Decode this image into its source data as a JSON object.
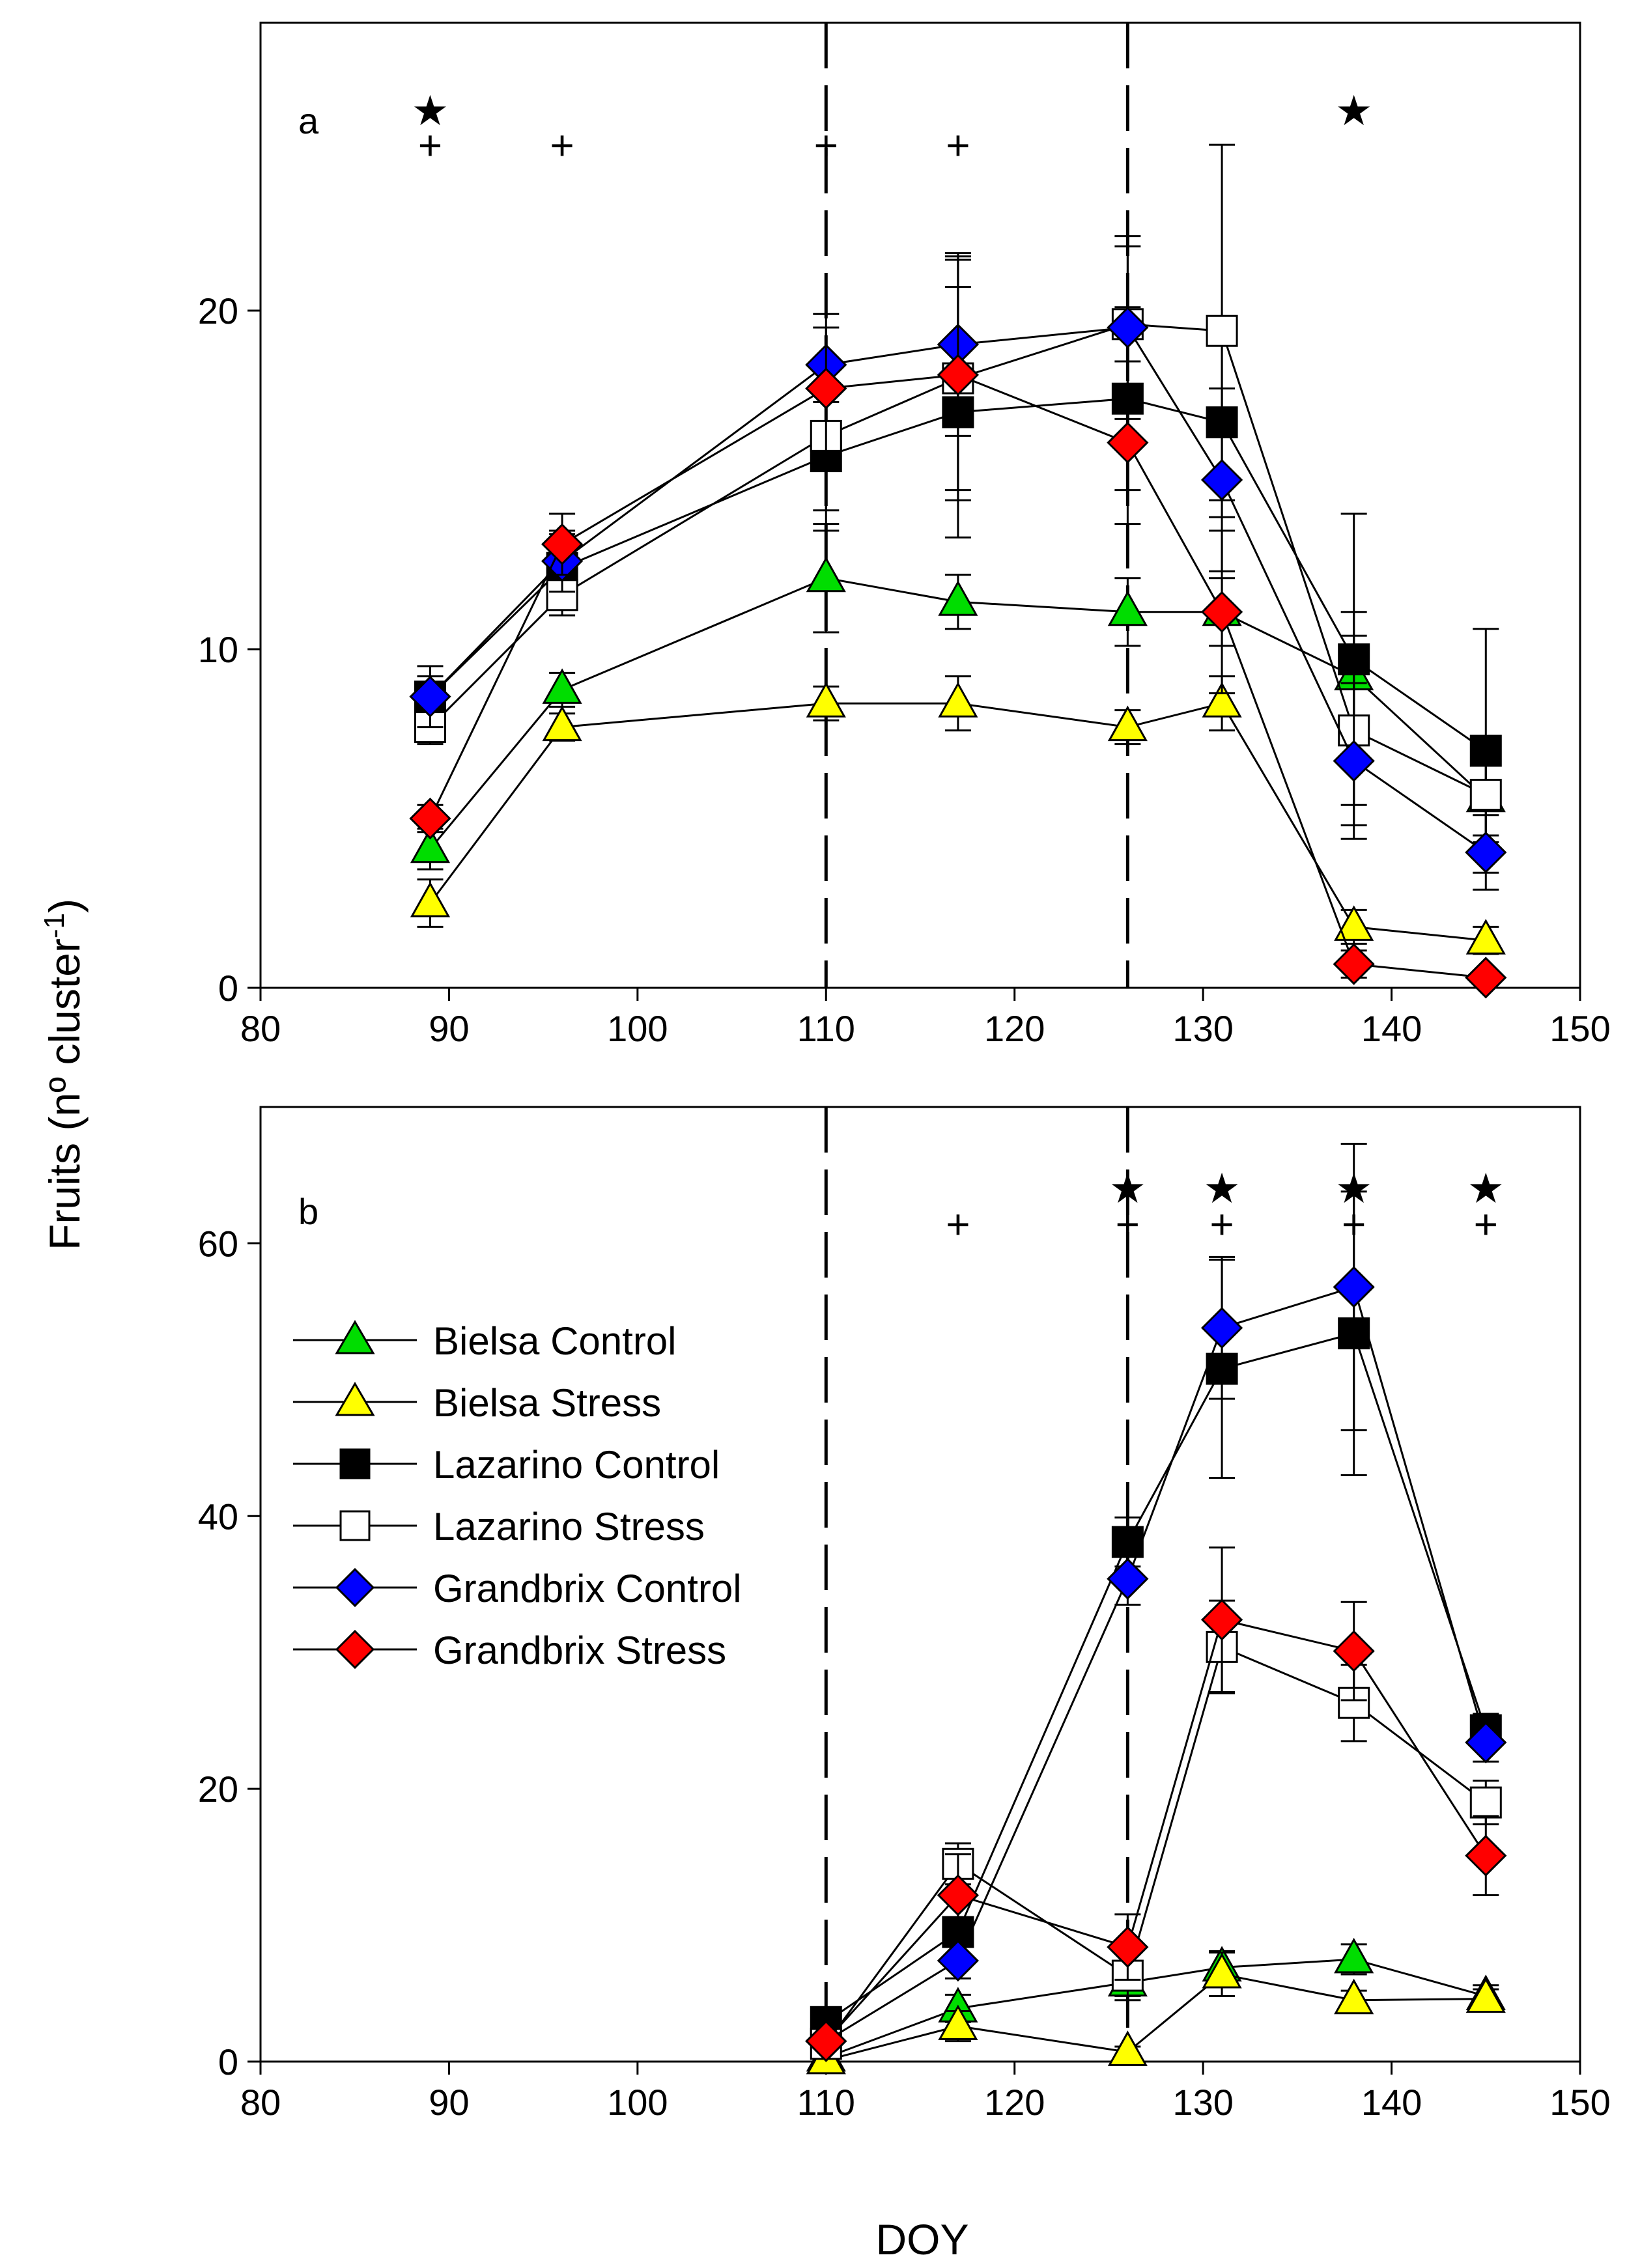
{
  "figure": {
    "ylabel": "Fruits (nº cluster",
    "ylabel_sup": "-1",
    "ylabel_close": ")",
    "xlabel": "DOY"
  },
  "legend": [
    {
      "label": "Bielsa Control"
    },
    {
      "label": "Bielsa Stress"
    },
    {
      "label": "Lazarino Control"
    },
    {
      "label": "Lazarino Stress"
    },
    {
      "label": "Grandbrix Control"
    },
    {
      "label": "Grandbrix Stress"
    }
  ],
  "colors": {
    "bielsa_control": "#00dd00",
    "bielsa_stress": "#ffff00",
    "lazarino_control": "#000000",
    "lazarino_stress": "#ffffff",
    "grandbrix_control": "#0000ff",
    "grandbrix_stress": "#ff0000"
  },
  "chart_data": [
    {
      "type": "line",
      "panel_label": "a",
      "xlim": [
        80,
        150
      ],
      "ylim": [
        0,
        28.5
      ],
      "xticks": [
        80,
        90,
        100,
        110,
        120,
        130,
        140,
        150
      ],
      "yticks": [
        0,
        10,
        20
      ],
      "vlines_dashed": [
        110,
        126
      ],
      "significance": [
        {
          "x": 89,
          "star": true,
          "plus": true
        },
        {
          "x": 96,
          "star": false,
          "plus": true
        },
        {
          "x": 110,
          "star": false,
          "plus": true
        },
        {
          "x": 117,
          "star": false,
          "plus": true
        },
        {
          "x": 138,
          "star": true,
          "plus": false
        }
      ],
      "series": [
        {
          "name": "Bielsa Control",
          "marker": "triangle",
          "color": "#00dd00",
          "x": [
            89,
            96,
            110,
            117,
            126,
            131,
            138,
            145
          ],
          "y": [
            4.1,
            8.8,
            12.1,
            11.4,
            11.1,
            11.1,
            9.2,
            5.6
          ],
          "err": [
            0.6,
            0.5,
            1.6,
            0.8,
            1.0,
            1.0,
            1.9,
            1.3
          ]
        },
        {
          "name": "Bielsa Stress",
          "marker": "triangle",
          "color": "#ffff00",
          "x": [
            89,
            96,
            110,
            117,
            126,
            131,
            138,
            145
          ],
          "y": [
            2.5,
            7.7,
            8.4,
            8.4,
            7.7,
            8.4,
            1.8,
            1.4
          ],
          "err": [
            0.7,
            0.4,
            0.5,
            0.8,
            0.5,
            0.8,
            0.5,
            0.4
          ]
        },
        {
          "name": "Lazarino Control",
          "marker": "square",
          "color": "#000000",
          "x": [
            89,
            96,
            110,
            117,
            126,
            131,
            138,
            145
          ],
          "y": [
            8.6,
            12.4,
            15.7,
            17.0,
            17.4,
            16.7,
            9.7,
            7.0
          ],
          "err": [
            0.6,
            1.0,
            2.2,
            3.7,
            2.7,
            2.3,
            4.3,
            3.6
          ]
        },
        {
          "name": "Lazarino Stress",
          "marker": "square",
          "color": "#ffffff",
          "x": [
            89,
            96,
            110,
            117,
            126,
            131,
            138,
            145
          ],
          "y": [
            7.7,
            11.6,
            16.3,
            18.0,
            19.6,
            19.4,
            7.6,
            5.7
          ],
          "err": [
            0.5,
            0.6,
            2.2,
            3.6,
            2.3,
            5.5,
            2.8,
            1.2
          ]
        },
        {
          "name": "Grandbrix Control",
          "marker": "diamond",
          "color": "#0000ff",
          "x": [
            89,
            96,
            110,
            117,
            126,
            131,
            138,
            145
          ],
          "y": [
            8.6,
            12.6,
            18.4,
            19.0,
            19.5,
            15.0,
            6.7,
            4.0
          ],
          "err": [
            0.9,
            0.9,
            1.1,
            2.7,
            2.7,
            2.7,
            2.3,
            1.1
          ]
        },
        {
          "name": "Grandbrix Stress",
          "marker": "diamond",
          "color": "#ff0000",
          "x": [
            89,
            96,
            110,
            117,
            126,
            131,
            138,
            145
          ],
          "y": [
            5.0,
            13.1,
            17.7,
            18.1,
            16.1,
            11.1,
            0.7,
            0.3
          ],
          "err": [
            0.4,
            0.9,
            2.2,
            3.4,
            2.4,
            2.4,
            0.4,
            0.2
          ]
        }
      ]
    },
    {
      "type": "line",
      "panel_label": "b",
      "xlim": [
        80,
        150
      ],
      "ylim": [
        0,
        70
      ],
      "xticks": [
        80,
        90,
        100,
        110,
        120,
        130,
        140,
        150
      ],
      "yticks": [
        0,
        20,
        40,
        60
      ],
      "vlines_dashed": [
        110,
        126
      ],
      "significance": [
        {
          "x": 117,
          "star": false,
          "plus": true
        },
        {
          "x": 126,
          "star": true,
          "plus": true
        },
        {
          "x": 131,
          "star": true,
          "plus": true
        },
        {
          "x": 138,
          "star": true,
          "plus": true
        },
        {
          "x": 145,
          "star": true,
          "plus": true
        }
      ],
      "series": [
        {
          "name": "Bielsa Control",
          "marker": "triangle",
          "color": "#00dd00",
          "x": [
            110,
            117,
            126,
            131,
            138,
            145
          ],
          "y": [
            0.3,
            3.9,
            5.8,
            6.9,
            7.5,
            4.8
          ],
          "err": [
            0.2,
            1.0,
            1.0,
            1.2,
            1.1,
            0.8
          ]
        },
        {
          "name": "Bielsa Stress",
          "marker": "triangle",
          "color": "#ffff00",
          "x": [
            110,
            117,
            126,
            131,
            138,
            145
          ],
          "y": [
            0.1,
            2.6,
            0.7,
            6.4,
            4.5,
            4.6
          ],
          "err": [
            0.1,
            1.1,
            0.4,
            1.6,
            0.7,
            0.7
          ]
        },
        {
          "name": "Lazarino Control",
          "marker": "square",
          "color": "#000000",
          "x": [
            110,
            117,
            126,
            131,
            138,
            145
          ],
          "y": [
            2.9,
            9.5,
            38.1,
            50.8,
            53.4,
            24.3
          ],
          "err": [
            0.6,
            2.2,
            1.8,
            8.0,
            10.4,
            1.2
          ]
        },
        {
          "name": "Lazarino Stress",
          "marker": "square",
          "color": "#ffffff",
          "x": [
            110,
            117,
            126,
            131,
            138,
            145
          ],
          "y": [
            1.3,
            14.5,
            6.3,
            30.4,
            26.3,
            19.0
          ],
          "err": [
            0.4,
            1.5,
            1.8,
            3.4,
            2.8,
            1.6
          ]
        },
        {
          "name": "Grandbrix Control",
          "marker": "diamond",
          "color": "#0000ff",
          "x": [
            110,
            117,
            126,
            131,
            138,
            145
          ],
          "y": [
            1.5,
            7.4,
            35.4,
            53.8,
            56.8,
            23.4
          ],
          "err": [
            0.4,
            1.3,
            1.9,
            5.2,
            10.5,
            1.4
          ]
        },
        {
          "name": "Grandbrix Stress",
          "marker": "diamond",
          "color": "#ff0000",
          "x": [
            110,
            117,
            126,
            131,
            138,
            145
          ],
          "y": [
            1.5,
            12.2,
            8.4,
            32.4,
            30.1,
            15.1
          ],
          "err": [
            0.5,
            3.0,
            2.4,
            5.3,
            3.6,
            2.9
          ]
        }
      ]
    }
  ]
}
